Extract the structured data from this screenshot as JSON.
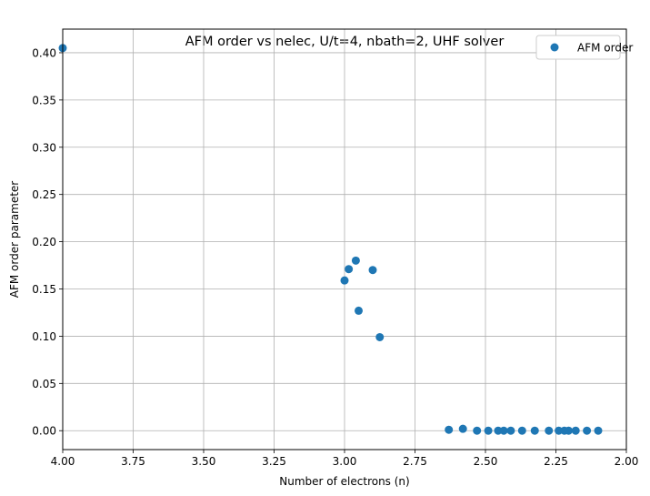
{
  "chart_data": {
    "type": "scatter",
    "title": "AFM order vs nelec, U/t=4, nbath=2, UHF solver",
    "xlabel": "Number of electrons (n)",
    "ylabel": "AFM order parameter",
    "xlim": [
      4.0,
      2.0
    ],
    "ylim": [
      -0.02,
      0.425
    ],
    "x_inverted": true,
    "grid": true,
    "legend_position": "top-right",
    "xticks": [
      "4.00",
      "3.75",
      "3.50",
      "3.25",
      "3.00",
      "2.75",
      "2.50",
      "2.25",
      "2.00"
    ],
    "yticks": [
      "0.00",
      "0.05",
      "0.10",
      "0.15",
      "0.20",
      "0.25",
      "0.30",
      "0.35",
      "0.40"
    ],
    "marker_color": "#1f77b4",
    "series": [
      {
        "name": "AFM order",
        "points": [
          {
            "x": 4.0,
            "y": 0.405
          },
          {
            "x": 3.0,
            "y": 0.159
          },
          {
            "x": 2.985,
            "y": 0.171
          },
          {
            "x": 2.96,
            "y": 0.18
          },
          {
            "x": 2.95,
            "y": 0.127
          },
          {
            "x": 2.9,
            "y": 0.17
          },
          {
            "x": 2.875,
            "y": 0.099
          },
          {
            "x": 2.63,
            "y": 0.001
          },
          {
            "x": 2.58,
            "y": 0.002
          },
          {
            "x": 2.53,
            "y": 0.0
          },
          {
            "x": 2.49,
            "y": 0.0
          },
          {
            "x": 2.455,
            "y": 0.0
          },
          {
            "x": 2.435,
            "y": 0.0
          },
          {
            "x": 2.41,
            "y": 0.0
          },
          {
            "x": 2.37,
            "y": 0.0
          },
          {
            "x": 2.325,
            "y": 0.0
          },
          {
            "x": 2.275,
            "y": 0.0
          },
          {
            "x": 2.24,
            "y": 0.0
          },
          {
            "x": 2.22,
            "y": 0.0
          },
          {
            "x": 2.205,
            "y": 0.0
          },
          {
            "x": 2.18,
            "y": 0.0
          },
          {
            "x": 2.14,
            "y": 0.0
          },
          {
            "x": 2.1,
            "y": 0.0
          }
        ]
      }
    ]
  }
}
